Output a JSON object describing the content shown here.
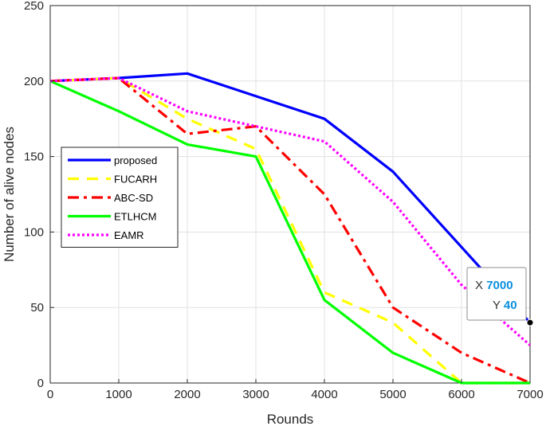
{
  "chart_data": {
    "type": "line",
    "xlabel": "Rounds",
    "ylabel": "Number of alive nodes",
    "xlim": [
      0,
      7000
    ],
    "ylim": [
      0,
      250
    ],
    "xticks": [
      0,
      1000,
      2000,
      3000,
      4000,
      5000,
      6000,
      7000
    ],
    "yticks": [
      0,
      50,
      100,
      150,
      200,
      250
    ],
    "grid": true,
    "legend_position": "middle-left",
    "x": [
      0,
      1000,
      2000,
      3000,
      4000,
      5000,
      6000,
      7000
    ],
    "series": [
      {
        "name": "proposed",
        "color": "#0000ff",
        "style": "solid",
        "values": [
          200,
          202,
          205,
          190,
          175,
          140,
          90,
          40
        ]
      },
      {
        "name": "FUCARH",
        "color": "#ffff00",
        "style": "dashed",
        "values": [
          200,
          202,
          175,
          155,
          60,
          40,
          0,
          0
        ]
      },
      {
        "name": "ABC-SD",
        "color": "#ff0000",
        "style": "dashdot",
        "values": [
          200,
          202,
          165,
          170,
          125,
          50,
          20,
          0
        ]
      },
      {
        "name": "ETLHCM",
        "color": "#00ff00",
        "style": "solid",
        "values": [
          200,
          180,
          158,
          150,
          55,
          20,
          0,
          0
        ]
      },
      {
        "name": "EAMR",
        "color": "#ff00ff",
        "style": "dotted",
        "values": [
          200,
          202,
          180,
          170,
          160,
          120,
          65,
          25
        ]
      }
    ],
    "datatip": {
      "x_label": "X",
      "x_value": "7000",
      "y_label": "Y",
      "y_value": "40",
      "x": 7000,
      "y": 40
    }
  }
}
